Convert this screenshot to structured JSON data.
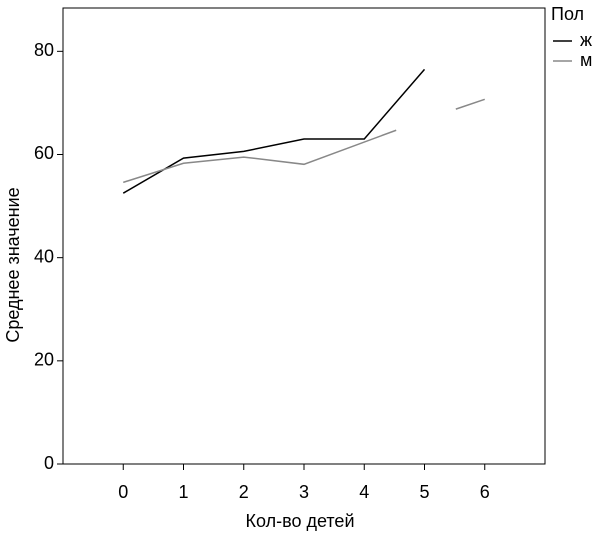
{
  "chart_data": {
    "type": "line",
    "x_label": "Кол-во детей",
    "y_label": "Среднее значение",
    "legend_title": "Пол",
    "legend": "top-right",
    "xlim": [
      -1,
      7
    ],
    "xticks": [
      0,
      1,
      2,
      3,
      4,
      5,
      6
    ],
    "ylim": [
      0,
      88.4
    ],
    "yticks": [
      0,
      20,
      40,
      60,
      80
    ],
    "series": [
      {
        "name": "ж",
        "color": "#000000",
        "x": [
          0,
          1,
          2,
          3,
          4,
          5
        ],
        "values": [
          52.5,
          59.3,
          60.6,
          63.0,
          63.0,
          76.5
        ]
      },
      {
        "name": "м",
        "color": "#888888",
        "x": [
          0,
          1,
          2,
          3,
          4.53,
          5,
          5.52,
          6
        ],
        "values": [
          54.6,
          58.3,
          59.5,
          58.1,
          64.7,
          null,
          68.8,
          70.7
        ]
      }
    ]
  }
}
